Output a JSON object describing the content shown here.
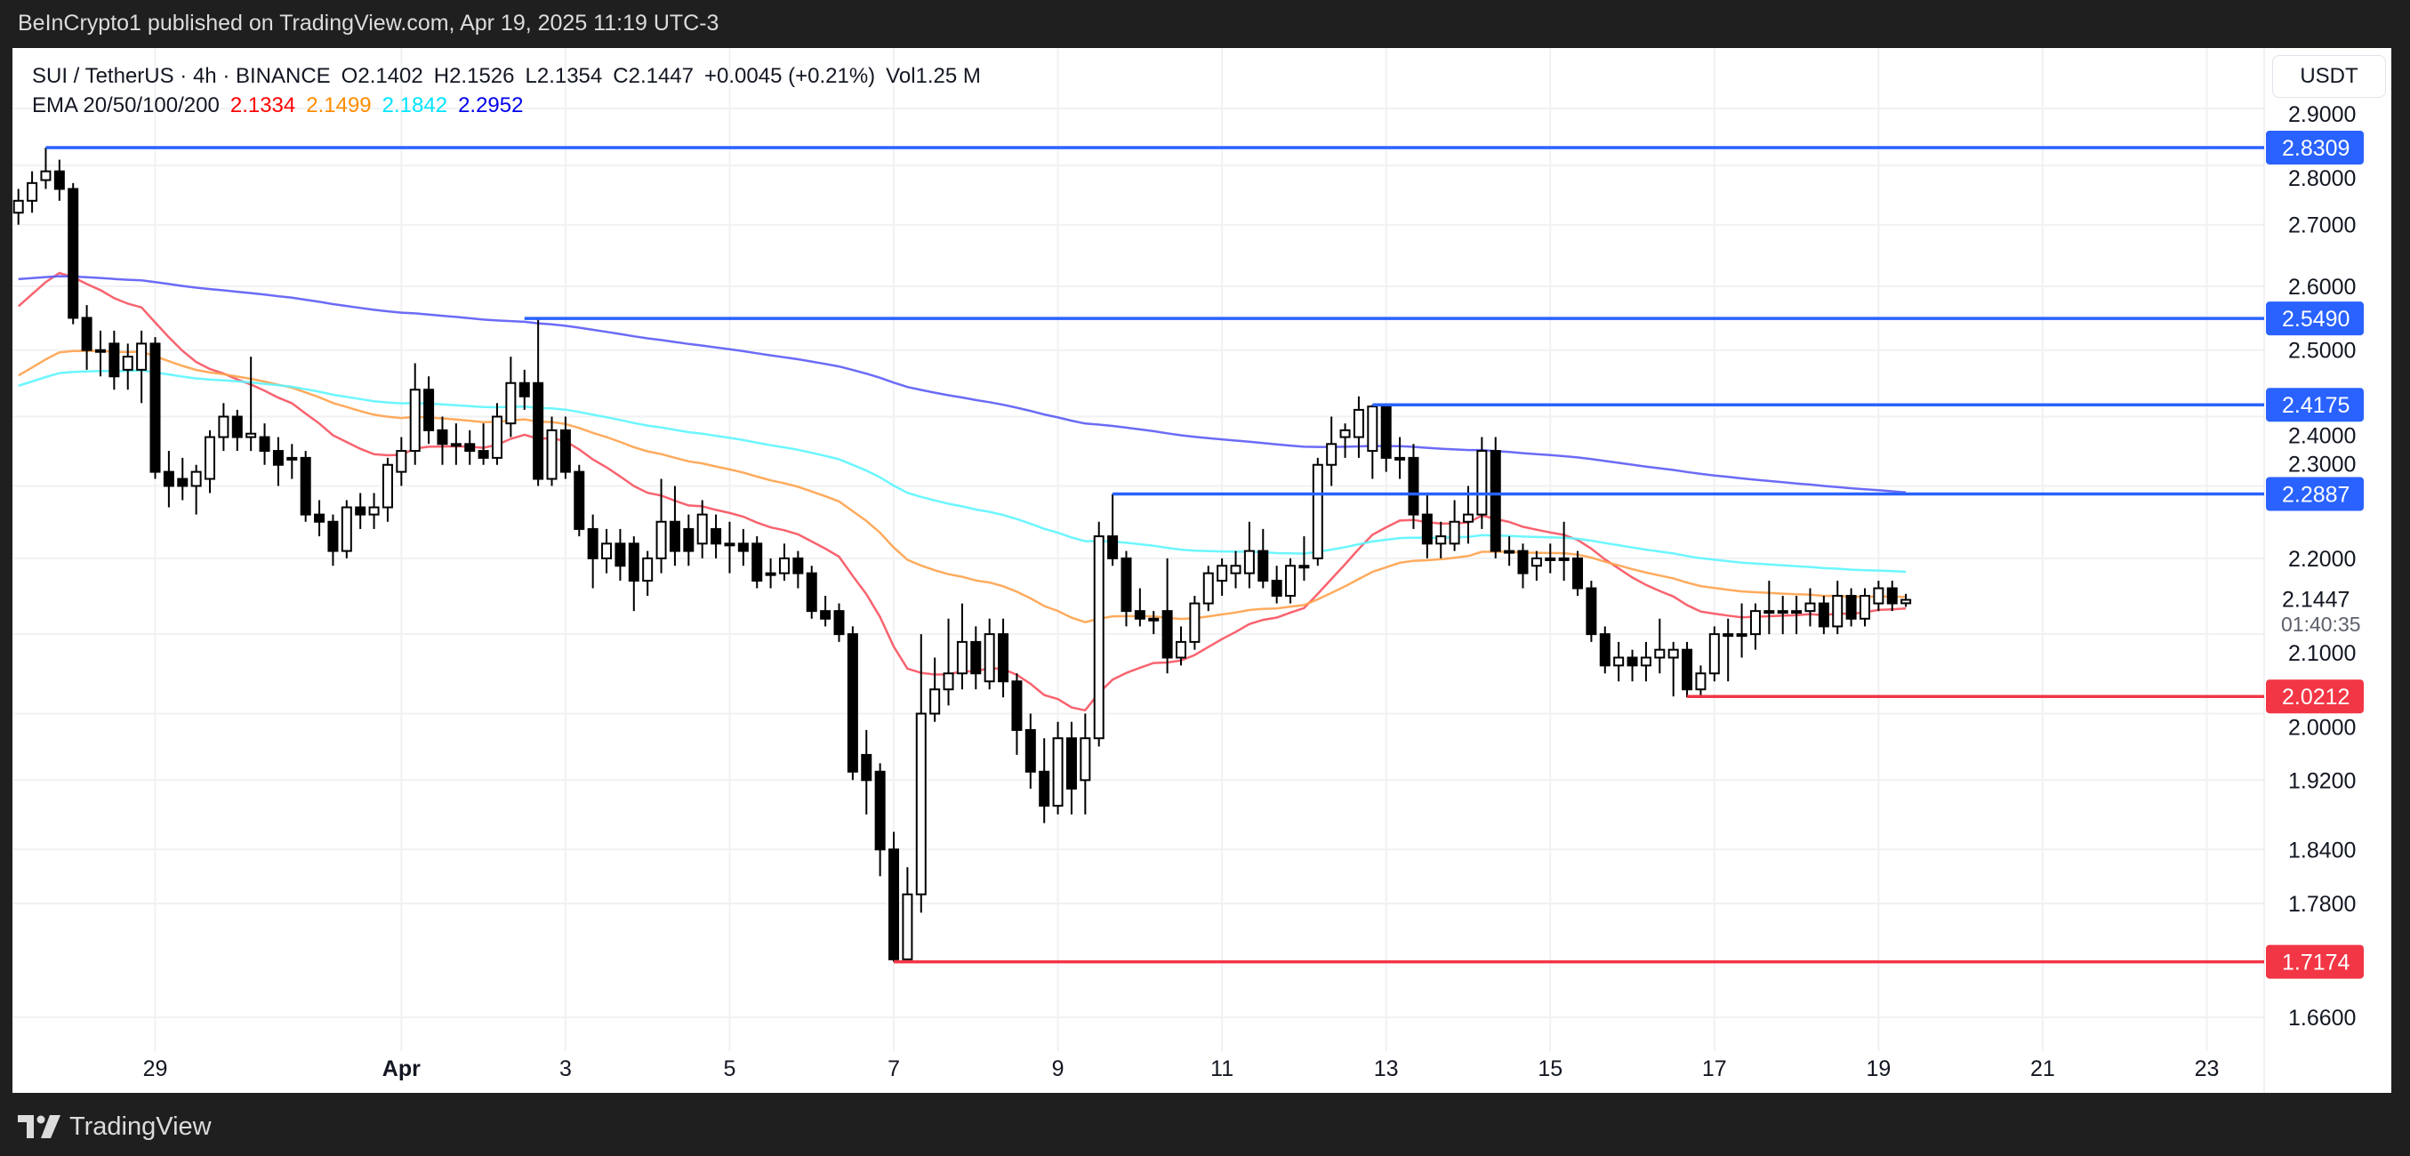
{
  "published": "BeInCrypto1 published on TradingView.com, Apr 19, 2025 11:19 UTC-3",
  "header": {
    "symbol": "SUI / TetherUS · 4h · BINANCE",
    "open": "O2.1402",
    "high": "H2.1526",
    "low": "L2.1354",
    "close": "C2.1447",
    "change": "+0.0045 (+0.21%)",
    "volume": "Vol1.25 M",
    "ema_label": "EMA 20/50/100/200",
    "ema_values": [
      "2.1334",
      "2.1499",
      "2.1842",
      "2.2952"
    ]
  },
  "currency_button": "USDT",
  "countdown": "01:40:35",
  "footer": {
    "brand": "TradingView",
    "logo_icon": "tradingview-logo-icon"
  },
  "colors": {
    "up_body": "#ffffff",
    "down_body": "#000000",
    "wick": "#000000",
    "resistance": "#2962ff",
    "support": "#f23645",
    "ema20": "#ff0000",
    "ema50": "#ff8c00",
    "ema100": "#00ffff",
    "ema200": "#0000ff",
    "ema20_line": "#f7525f",
    "ema50_line": "#ffa24d",
    "ema100_line": "#5cf5ff",
    "ema200_line": "#5b5bf5"
  },
  "chart_data": {
    "type": "candlestick",
    "symbol": "SUI/USDT",
    "interval": "4h",
    "start": "2025-03-27 08:00",
    "y_scale": "log",
    "ylim": [
      1.62,
      2.95
    ],
    "grid": true,
    "current_price": "2.1447",
    "y_ticks": [
      "2.9000",
      "2.8000",
      "2.7000",
      "2.6000",
      "2.5000",
      "2.4000",
      "2.3000",
      "2.2000",
      "2.1000",
      "2.0000",
      "1.9200",
      "1.8400",
      "1.7800",
      "1.6600"
    ],
    "x_ticks": [
      {
        "label": "29",
        "date": "2025-03-29"
      },
      {
        "label": "Apr",
        "date": "2025-04-01",
        "bold": true
      },
      {
        "label": "3",
        "date": "2025-04-03"
      },
      {
        "label": "5",
        "date": "2025-04-05"
      },
      {
        "label": "7",
        "date": "2025-04-07"
      },
      {
        "label": "9",
        "date": "2025-04-09"
      },
      {
        "label": "11",
        "date": "2025-04-11"
      },
      {
        "label": "13",
        "date": "2025-04-13"
      },
      {
        "label": "15",
        "date": "2025-04-15"
      },
      {
        "label": "17",
        "date": "2025-04-17"
      },
      {
        "label": "19",
        "date": "2025-04-19"
      },
      {
        "label": "21",
        "date": "2025-04-21"
      },
      {
        "label": "23",
        "date": "2025-04-23"
      }
    ],
    "levels": [
      {
        "price": "2.8309",
        "type": "resistance",
        "from_date": "2025-03-27 16:00"
      },
      {
        "price": "2.5490",
        "type": "resistance",
        "from_date": "2025-04-02 12:00"
      },
      {
        "price": "2.4175",
        "type": "resistance",
        "from_date": "2025-04-12 20:00"
      },
      {
        "price": "2.2887",
        "type": "resistance",
        "from_date": "2025-04-09 16:00"
      },
      {
        "price": "2.0212",
        "type": "support",
        "from_date": "2025-04-16 16:00"
      },
      {
        "price": "1.7174",
        "type": "support",
        "from_date": "2025-04-07 00:00"
      }
    ],
    "ema_series": [
      {
        "name": "EMA 20",
        "period": 20,
        "start": 2.55,
        "color_key": "ema20_line"
      },
      {
        "name": "EMA 50",
        "period": 50,
        "start": 2.45,
        "color_key": "ema50_line"
      },
      {
        "name": "EMA 100",
        "period": 100,
        "start": 2.44,
        "color_key": "ema100_line"
      },
      {
        "name": "EMA 200",
        "period": 200,
        "start": 2.61,
        "color_key": "ema200_line"
      }
    ],
    "ohlc": [
      [
        2.72,
        2.76,
        2.7,
        2.74
      ],
      [
        2.74,
        2.79,
        2.72,
        2.77
      ],
      [
        2.775,
        2.8309,
        2.76,
        2.79
      ],
      [
        2.79,
        2.81,
        2.74,
        2.76
      ],
      [
        2.76,
        2.77,
        2.54,
        2.55
      ],
      [
        2.55,
        2.57,
        2.47,
        2.5
      ],
      [
        2.5,
        2.53,
        2.46,
        2.5
      ],
      [
        2.51,
        2.53,
        2.44,
        2.46
      ],
      [
        2.47,
        2.51,
        2.44,
        2.49
      ],
      [
        2.47,
        2.53,
        2.42,
        2.51
      ],
      [
        2.51,
        2.52,
        2.31,
        2.32
      ],
      [
        2.32,
        2.35,
        2.27,
        2.3
      ],
      [
        2.31,
        2.34,
        2.28,
        2.3
      ],
      [
        2.3,
        2.33,
        2.26,
        2.32
      ],
      [
        2.31,
        2.38,
        2.29,
        2.37
      ],
      [
        2.37,
        2.42,
        2.35,
        2.4
      ],
      [
        2.4,
        2.41,
        2.35,
        2.37
      ],
      [
        2.37,
        2.49,
        2.35,
        2.375
      ],
      [
        2.37,
        2.39,
        2.33,
        2.35
      ],
      [
        2.35,
        2.37,
        2.3,
        2.33
      ],
      [
        2.34,
        2.36,
        2.31,
        2.34
      ],
      [
        2.34,
        2.35,
        2.25,
        2.26
      ],
      [
        2.26,
        2.28,
        2.23,
        2.25
      ],
      [
        2.25,
        2.26,
        2.19,
        2.21
      ],
      [
        2.21,
        2.28,
        2.2,
        2.27
      ],
      [
        2.27,
        2.29,
        2.24,
        2.26
      ],
      [
        2.26,
        2.29,
        2.24,
        2.27
      ],
      [
        2.27,
        2.34,
        2.25,
        2.33
      ],
      [
        2.32,
        2.37,
        2.3,
        2.35
      ],
      [
        2.35,
        2.48,
        2.33,
        2.44
      ],
      [
        2.44,
        2.46,
        2.36,
        2.38
      ],
      [
        2.38,
        2.4,
        2.33,
        2.36
      ],
      [
        2.36,
        2.39,
        2.33,
        2.36
      ],
      [
        2.36,
        2.38,
        2.33,
        2.35
      ],
      [
        2.35,
        2.39,
        2.33,
        2.34
      ],
      [
        2.34,
        2.42,
        2.33,
        2.4
      ],
      [
        2.39,
        2.49,
        2.37,
        2.45
      ],
      [
        2.45,
        2.47,
        2.41,
        2.43
      ],
      [
        2.45,
        2.549,
        2.3,
        2.31
      ],
      [
        2.31,
        2.4,
        2.3,
        2.38
      ],
      [
        2.38,
        2.4,
        2.31,
        2.32
      ],
      [
        2.32,
        2.33,
        2.23,
        2.24
      ],
      [
        2.24,
        2.26,
        2.16,
        2.2
      ],
      [
        2.2,
        2.24,
        2.18,
        2.22
      ],
      [
        2.22,
        2.24,
        2.17,
        2.19
      ],
      [
        2.22,
        2.23,
        2.13,
        2.17
      ],
      [
        2.17,
        2.21,
        2.15,
        2.2
      ],
      [
        2.2,
        2.31,
        2.18,
        2.25
      ],
      [
        2.25,
        2.3,
        2.19,
        2.21
      ],
      [
        2.24,
        2.26,
        2.19,
        2.21
      ],
      [
        2.22,
        2.28,
        2.2,
        2.26
      ],
      [
        2.24,
        2.26,
        2.2,
        2.22
      ],
      [
        2.22,
        2.25,
        2.18,
        2.22
      ],
      [
        2.22,
        2.24,
        2.19,
        2.21
      ],
      [
        2.22,
        2.23,
        2.16,
        2.17
      ],
      [
        2.18,
        2.2,
        2.16,
        2.18
      ],
      [
        2.18,
        2.22,
        2.17,
        2.2
      ],
      [
        2.2,
        2.21,
        2.16,
        2.18
      ],
      [
        2.18,
        2.19,
        2.12,
        2.13
      ],
      [
        2.13,
        2.15,
        2.11,
        2.12
      ],
      [
        2.13,
        2.14,
        2.09,
        2.1
      ],
      [
        2.1,
        2.11,
        1.92,
        1.93
      ],
      [
        1.95,
        1.98,
        1.88,
        1.92
      ],
      [
        1.93,
        1.94,
        1.81,
        1.84
      ],
      [
        1.84,
        1.86,
        1.7174,
        1.72
      ],
      [
        1.72,
        1.82,
        1.72,
        1.79
      ],
      [
        1.79,
        2.1,
        1.77,
        2.0
      ],
      [
        2.0,
        2.07,
        1.99,
        2.03
      ],
      [
        2.03,
        2.12,
        2.01,
        2.05
      ],
      [
        2.05,
        2.14,
        2.03,
        2.09
      ],
      [
        2.09,
        2.11,
        2.03,
        2.05
      ],
      [
        2.04,
        2.12,
        2.03,
        2.1
      ],
      [
        2.1,
        2.12,
        2.02,
        2.04
      ],
      [
        2.04,
        2.05,
        1.95,
        1.98
      ],
      [
        1.98,
        2.0,
        1.91,
        1.93
      ],
      [
        1.93,
        1.97,
        1.87,
        1.89
      ],
      [
        1.89,
        1.99,
        1.88,
        1.97
      ],
      [
        1.97,
        1.99,
        1.88,
        1.91
      ],
      [
        1.92,
        2.0,
        1.88,
        1.97
      ],
      [
        1.97,
        2.25,
        1.96,
        2.23
      ],
      [
        2.23,
        2.2887,
        2.19,
        2.2
      ],
      [
        2.2,
        2.21,
        2.11,
        2.13
      ],
      [
        2.13,
        2.16,
        2.11,
        2.12
      ],
      [
        2.12,
        2.13,
        2.1,
        2.12
      ],
      [
        2.13,
        2.2,
        2.05,
        2.07
      ],
      [
        2.07,
        2.11,
        2.06,
        2.09
      ],
      [
        2.09,
        2.15,
        2.08,
        2.14
      ],
      [
        2.14,
        2.19,
        2.13,
        2.18
      ],
      [
        2.17,
        2.2,
        2.15,
        2.19
      ],
      [
        2.18,
        2.21,
        2.16,
        2.19
      ],
      [
        2.18,
        2.25,
        2.16,
        2.21
      ],
      [
        2.21,
        2.24,
        2.16,
        2.17
      ],
      [
        2.17,
        2.19,
        2.14,
        2.15
      ],
      [
        2.15,
        2.2,
        2.14,
        2.19
      ],
      [
        2.19,
        2.23,
        2.17,
        2.19
      ],
      [
        2.2,
        2.34,
        2.19,
        2.33
      ],
      [
        2.33,
        2.4,
        2.3,
        2.36
      ],
      [
        2.37,
        2.39,
        2.34,
        2.38
      ],
      [
        2.37,
        2.43,
        2.34,
        2.41
      ],
      [
        2.35,
        2.4175,
        2.31,
        2.415
      ],
      [
        2.415,
        2.4175,
        2.32,
        2.34
      ],
      [
        2.34,
        2.37,
        2.31,
        2.34
      ],
      [
        2.34,
        2.36,
        2.24,
        2.26
      ],
      [
        2.26,
        2.29,
        2.2,
        2.22
      ],
      [
        2.22,
        2.25,
        2.2,
        2.23
      ],
      [
        2.22,
        2.28,
        2.21,
        2.25
      ],
      [
        2.25,
        2.3,
        2.22,
        2.26
      ],
      [
        2.26,
        2.37,
        2.24,
        2.35
      ],
      [
        2.35,
        2.37,
        2.2,
        2.21
      ],
      [
        2.21,
        2.23,
        2.19,
        2.21
      ],
      [
        2.21,
        2.22,
        2.16,
        2.18
      ],
      [
        2.19,
        2.21,
        2.17,
        2.2
      ],
      [
        2.2,
        2.22,
        2.18,
        2.2
      ],
      [
        2.2,
        2.25,
        2.17,
        2.2
      ],
      [
        2.2,
        2.21,
        2.15,
        2.16
      ],
      [
        2.16,
        2.17,
        2.09,
        2.1
      ],
      [
        2.1,
        2.11,
        2.05,
        2.06
      ],
      [
        2.06,
        2.09,
        2.04,
        2.07
      ],
      [
        2.07,
        2.08,
        2.04,
        2.06
      ],
      [
        2.06,
        2.09,
        2.04,
        2.07
      ],
      [
        2.07,
        2.12,
        2.05,
        2.08
      ],
      [
        2.07,
        2.09,
        2.0212,
        2.08
      ],
      [
        2.08,
        2.09,
        2.02,
        2.03
      ],
      [
        2.03,
        2.06,
        2.02,
        2.05
      ],
      [
        2.05,
        2.11,
        2.04,
        2.1
      ],
      [
        2.1,
        2.12,
        2.04,
        2.1
      ],
      [
        2.1,
        2.14,
        2.07,
        2.1
      ],
      [
        2.1,
        2.14,
        2.08,
        2.13
      ],
      [
        2.13,
        2.17,
        2.1,
        2.13
      ],
      [
        2.13,
        2.15,
        2.1,
        2.13
      ],
      [
        2.13,
        2.15,
        2.1,
        2.13
      ],
      [
        2.13,
        2.16,
        2.11,
        2.14
      ],
      [
        2.14,
        2.15,
        2.1,
        2.11
      ],
      [
        2.11,
        2.17,
        2.1,
        2.15
      ],
      [
        2.15,
        2.16,
        2.11,
        2.12
      ],
      [
        2.12,
        2.16,
        2.11,
        2.15
      ],
      [
        2.14,
        2.17,
        2.13,
        2.16
      ],
      [
        2.16,
        2.17,
        2.13,
        2.14
      ],
      [
        2.1402,
        2.1526,
        2.1354,
        2.1447
      ]
    ]
  }
}
